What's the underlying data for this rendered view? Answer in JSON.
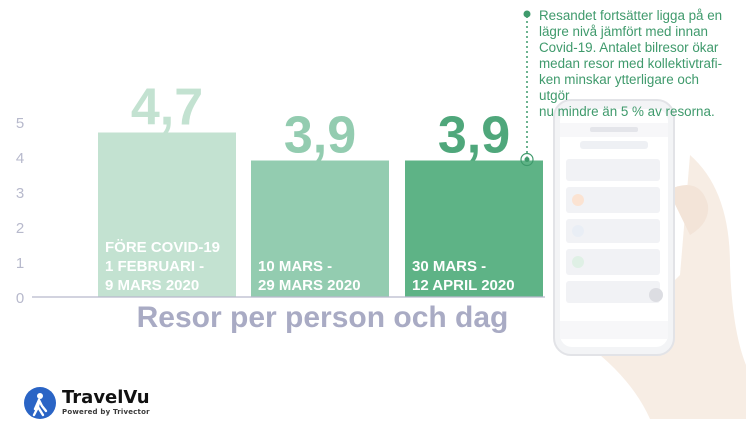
{
  "chart_data": {
    "type": "bar",
    "categories": [
      "FÖRE COVID-19\n1 FEBRUARI -\n9 MARS 2020",
      "10 MARS -\n29 MARS 2020",
      "30 MARS -\n12 APRIL 2020"
    ],
    "values": [
      4.7,
      3.9,
      3.9
    ],
    "value_labels": [
      "4,7",
      "3,9",
      "3,9"
    ],
    "bar_colors": [
      "#c3e2d1",
      "#93ccb0",
      "#5eb386"
    ],
    "value_label_colors": [
      "#c3e2d1",
      "#93ccb0",
      "#4fa77b"
    ],
    "ylim": [
      0,
      5
    ],
    "yticks": [
      "0",
      "1",
      "2",
      "3",
      "4",
      "5"
    ],
    "xlabel": "Resor per person och dag",
    "grid": false
  },
  "annotation": {
    "text": "Resandet fortsätter ligga på en\nlägre nivå jämfört med innan\nCovid-19. Antalet bilresor ökar\nmedan resor med kollektivtrafi-\nken minskar ytterligare och utgör\nnu mindre än 5 % av resorna."
  },
  "brand": {
    "name": "TravelVu",
    "tagline": "Powered by Trivector"
  },
  "colors": {
    "axis_text": "#b7b9cc",
    "accent": "#3f9a6c",
    "brand_blue": "#2a64c5"
  }
}
